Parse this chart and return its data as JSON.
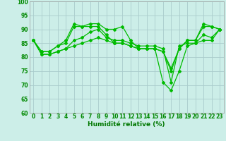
{
  "xlabel": "Humidité relative (%)",
  "xlim": [
    -0.5,
    23.5
  ],
  "ylim": [
    60,
    100
  ],
  "yticks": [
    60,
    65,
    70,
    75,
    80,
    85,
    90,
    95,
    100
  ],
  "xticks": [
    0,
    1,
    2,
    3,
    4,
    5,
    6,
    7,
    8,
    9,
    10,
    11,
    12,
    13,
    14,
    15,
    16,
    17,
    18,
    19,
    20,
    21,
    22,
    23
  ],
  "background_color": "#cceee8",
  "grid_color": "#aacccc",
  "line_color": "#00bb00",
  "marker": "D",
  "markersize": 2.0,
  "linewidth": 0.9,
  "lines": [
    [
      86,
      82,
      82,
      84,
      86,
      92,
      91,
      92,
      92,
      90,
      90,
      91,
      86,
      83,
      83,
      83,
      82,
      76,
      83,
      86,
      86,
      92,
      91,
      90
    ],
    [
      86,
      82,
      82,
      84,
      85,
      91,
      91,
      91,
      91,
      88,
      85,
      85,
      84,
      83,
      83,
      83,
      82,
      75,
      83,
      86,
      86,
      91,
      91,
      90
    ],
    [
      86,
      81,
      81,
      82,
      83,
      86,
      87,
      89,
      90,
      87,
      86,
      86,
      85,
      84,
      84,
      84,
      83,
      71,
      84,
      85,
      85,
      88,
      87,
      90
    ],
    [
      86,
      81,
      81,
      82,
      83,
      84,
      85,
      86,
      87,
      86,
      85,
      85,
      84,
      83,
      83,
      83,
      71,
      68,
      75,
      84,
      85,
      86,
      86,
      90
    ]
  ]
}
